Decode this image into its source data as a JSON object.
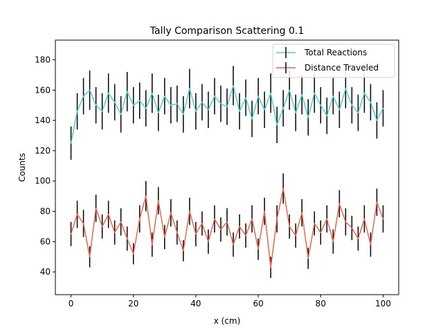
{
  "chart_data": {
    "type": "line",
    "title": "Tally Comparison Scattering 0.1",
    "xlabel": "x (cm)",
    "ylabel": "Counts",
    "xlim": [
      -5,
      105
    ],
    "ylim": [
      25,
      193
    ],
    "xticks": [
      0,
      20,
      40,
      60,
      80,
      100
    ],
    "yticks": [
      40,
      60,
      80,
      100,
      120,
      140,
      160,
      180
    ],
    "grid": false,
    "legend": "top-right",
    "error_bars": true,
    "series": [
      {
        "name": "Total Reactions",
        "color": "#4fcfcf",
        "x": [
          0,
          2,
          4,
          6,
          8,
          10,
          12,
          14,
          16,
          18,
          20,
          22,
          24,
          26,
          28,
          30,
          32,
          34,
          36,
          38,
          40,
          42,
          44,
          46,
          48,
          50,
          52,
          54,
          56,
          58,
          60,
          62,
          64,
          66,
          68,
          70,
          72,
          74,
          76,
          78,
          80,
          82,
          84,
          86,
          88,
          90,
          92,
          94,
          96,
          98,
          100
        ],
        "y": [
          125,
          146,
          156,
          160,
          150,
          146,
          158,
          152,
          144,
          159,
          150,
          153,
          148,
          158,
          145,
          156,
          150,
          151,
          144,
          161,
          146,
          152,
          147,
          156,
          151,
          149,
          163,
          146,
          155,
          141,
          156,
          147,
          158,
          137,
          148,
          160,
          145,
          157,
          142,
          158,
          150,
          143,
          156,
          147,
          161,
          150,
          145,
          158,
          152,
          140,
          148
        ],
        "errors": [
          11,
          12,
          12,
          13,
          12,
          12,
          13,
          12,
          12,
          13,
          12,
          12,
          12,
          13,
          12,
          12,
          12,
          12,
          12,
          13,
          12,
          12,
          12,
          12,
          12,
          12,
          13,
          12,
          12,
          12,
          12,
          12,
          13,
          12,
          12,
          13,
          12,
          13,
          12,
          13,
          12,
          12,
          12,
          12,
          13,
          12,
          12,
          13,
          12,
          12,
          12
        ]
      },
      {
        "name": "Distance Traveled",
        "color": "#f2634a",
        "x": [
          0,
          2,
          4,
          6,
          8,
          10,
          12,
          14,
          16,
          18,
          20,
          22,
          24,
          26,
          28,
          30,
          32,
          34,
          36,
          38,
          40,
          42,
          44,
          46,
          48,
          50,
          52,
          54,
          56,
          58,
          60,
          62,
          64,
          66,
          68,
          70,
          72,
          74,
          76,
          78,
          80,
          82,
          84,
          86,
          88,
          90,
          92,
          94,
          96,
          98,
          100
        ],
        "y": [
          65,
          78,
          72,
          50,
          82,
          70,
          78,
          66,
          73,
          62,
          52,
          75,
          90,
          58,
          87,
          63,
          79,
          66,
          54,
          80,
          65,
          72,
          60,
          75,
          68,
          73,
          58,
          70,
          64,
          75,
          55,
          80,
          43,
          75,
          95,
          70,
          64,
          79,
          49,
          72,
          66,
          75,
          60,
          85,
          73,
          69,
          62,
          75,
          58,
          86,
          75
        ],
        "errors": [
          8,
          9,
          9,
          7,
          9,
          8,
          9,
          8,
          9,
          8,
          7,
          9,
          10,
          8,
          9,
          8,
          9,
          8,
          7,
          9,
          8,
          8,
          8,
          9,
          8,
          9,
          8,
          8,
          8,
          9,
          7,
          9,
          7,
          9,
          10,
          8,
          8,
          9,
          7,
          8,
          8,
          9,
          8,
          9,
          9,
          8,
          8,
          9,
          8,
          9,
          9
        ]
      }
    ]
  }
}
